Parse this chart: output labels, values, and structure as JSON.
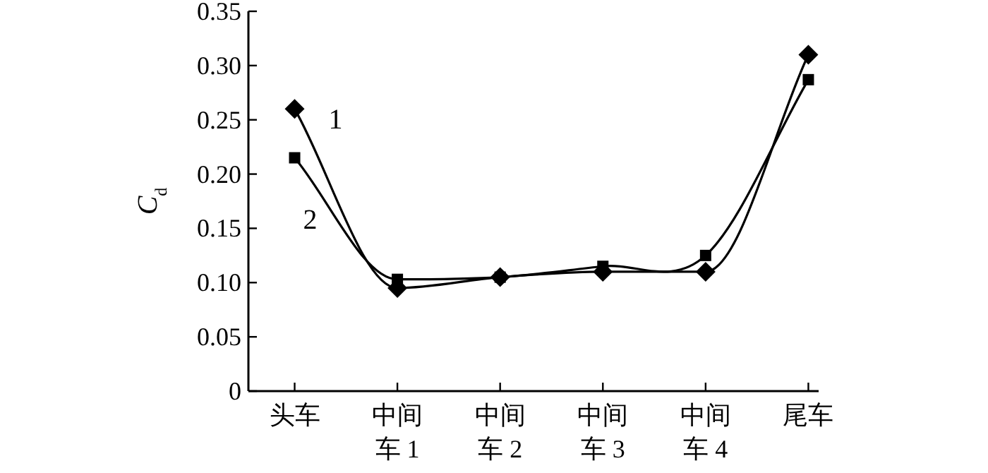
{
  "chart_data": {
    "type": "line",
    "ylabel": "C$_{d}$",
    "categories": [
      "头车",
      "中间车 1",
      "中间车 2",
      "中间车 3",
      "中间车 4",
      "尾车"
    ],
    "ylim": [
      0,
      0.35
    ],
    "yticks": [
      0,
      0.05,
      {
        "value": 0.1,
        "label": "0.10"
      },
      0.15,
      {
        "value": 0.2,
        "label": "0.20"
      },
      0.25,
      {
        "value": 0.3,
        "label": "0.30"
      },
      0.35
    ],
    "series": [
      {
        "name": "1",
        "color": "#000000",
        "marker": "diamond",
        "values": [
          0.26,
          0.095,
          0.105,
          0.11,
          0.11,
          0.31
        ]
      },
      {
        "name": "2",
        "color": "#000000",
        "marker": "square",
        "values": [
          0.215,
          0.103,
          0.105,
          0.115,
          0.125,
          0.287
        ]
      }
    ],
    "legend": false,
    "grid": false
  }
}
